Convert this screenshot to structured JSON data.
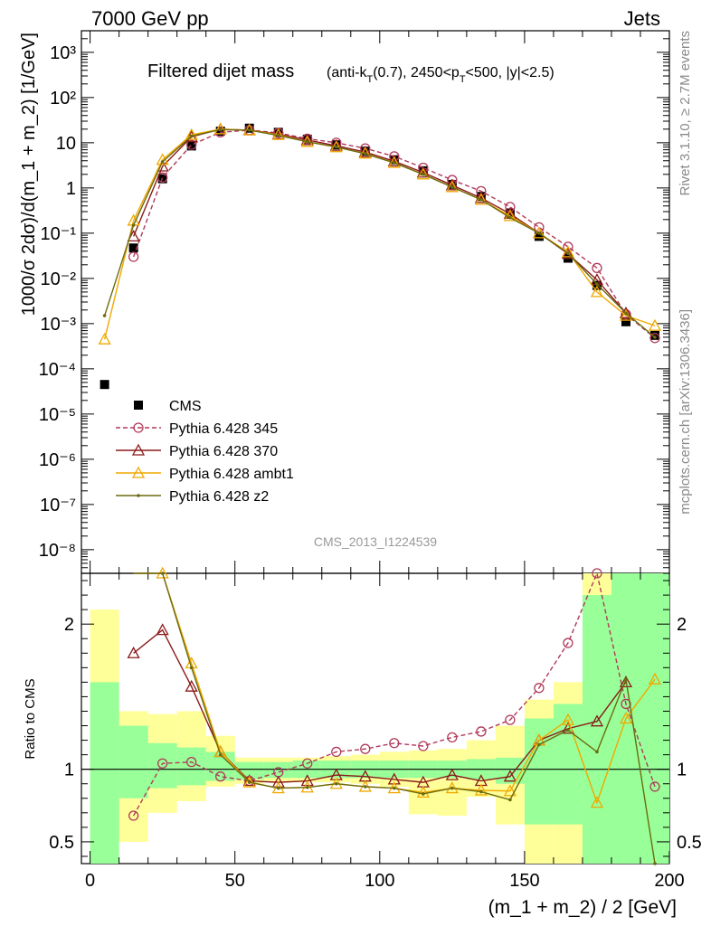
{
  "header": {
    "left": "7000 GeV pp",
    "right": "Jets"
  },
  "plot_title": {
    "main": "Filtered dijet mass",
    "sub": "(anti-k",
    "sub_T1": "T",
    "sub_mid": "(0.7), 2450<p",
    "sub_T2": "T",
    "sub_end": "<500, |y|<2.5)"
  },
  "side_labels": {
    "rivet": "Rivet 3.1.10, ≥ 2.7M events",
    "mcplots": "mcplots.cern.ch [arXiv:1306.3436]"
  },
  "watermark": "CMS_2013_I1224539",
  "legend": [
    {
      "label": "CMS",
      "color": "#000000",
      "style": "square"
    },
    {
      "label": "Pythia 6.428 345",
      "color": "#b03a5a",
      "style": "circle-dashed"
    },
    {
      "label": "Pythia 6.428 370",
      "color": "#8b1a1a",
      "style": "triangle"
    },
    {
      "label": "Pythia 6.428 ambt1",
      "color": "#f0a800",
      "style": "triangle"
    },
    {
      "label": "Pythia 6.428 z2",
      "color": "#6b6b10",
      "style": "dot"
    }
  ],
  "chart_data": [
    {
      "type": "line",
      "panel": "main",
      "ylabel": "1000/σ 2dσ)/d(m_1 + m_2) [1/GeV]",
      "yscale": "log",
      "ylim": [
        3e-09,
        3000
      ],
      "xlim": [
        -3,
        200
      ],
      "y_tick_labels": [
        "10⁻⁸",
        "10⁻⁷",
        "10⁻⁶",
        "10⁻⁵",
        "10⁻⁴",
        "10⁻³",
        "10⁻²",
        "10⁻¹",
        "1",
        "10",
        "10²",
        "10³"
      ],
      "x": [
        5,
        15,
        25,
        35,
        45,
        55,
        65,
        75,
        85,
        95,
        105,
        115,
        125,
        135,
        145,
        155,
        165,
        175,
        185,
        195
      ],
      "series": [
        {
          "name": "CMS",
          "values": [
            4.5e-05,
            0.047,
            1.6,
            8.5,
            18,
            21,
            17,
            12,
            9,
            6.5,
            4.2,
            2.4,
            1.2,
            0.65,
            0.28,
            0.085,
            0.028,
            0.007,
            0.0011,
            0.00055
          ]
        },
        {
          "name": "Pythia 6.428 345",
          "values": [
            null,
            0.03,
            1.7,
            9.0,
            17,
            19,
            16.5,
            12.3,
            10,
            7.5,
            5.0,
            2.8,
            1.5,
            0.85,
            0.38,
            0.135,
            0.05,
            0.017,
            0.0016,
            0.00048
          ]
        },
        {
          "name": "Pythia 6.428 370",
          "values": [
            null,
            0.085,
            3.0,
            13.5,
            20,
            19,
            15.5,
            11.5,
            8.6,
            6.2,
            3.9,
            2.2,
            1.15,
            0.6,
            0.27,
            0.1,
            0.035,
            0.0093,
            0.0017,
            null
          ]
        },
        {
          "name": "Pythia 6.428 ambt1",
          "values": [
            0.00045,
            0.19,
            4.2,
            15,
            20,
            19,
            15,
            10.5,
            8.0,
            5.8,
            3.6,
            2.0,
            1.05,
            0.55,
            0.24,
            0.1,
            0.038,
            0.005,
            0.0015,
            0.0009
          ]
        },
        {
          "name": "Pythia 6.428 z2",
          "values": [
            0.0015,
            0.15,
            3.8,
            14,
            19.5,
            19,
            14.5,
            10.5,
            8.1,
            5.7,
            3.6,
            2.0,
            1.05,
            0.55,
            0.22,
            0.1,
            0.036,
            0.0075,
            0.0017,
            0.0005
          ]
        }
      ]
    },
    {
      "type": "line",
      "panel": "ratio",
      "ylabel": "Ratio to CMS",
      "ylim": [
        0.35,
        2.35
      ],
      "y_tick_labels": [
        "0.5",
        "1",
        "2"
      ],
      "xlabel": "(m_1 + m_2) / 2 [GeV]",
      "x_tick_labels": [
        "0",
        "50",
        "100",
        "150",
        "200"
      ],
      "x": [
        5,
        15,
        25,
        35,
        45,
        55,
        65,
        75,
        85,
        95,
        105,
        115,
        125,
        135,
        145,
        155,
        165,
        175,
        185,
        195
      ],
      "bin_edges": [
        0,
        10,
        20,
        30,
        40,
        50,
        60,
        70,
        80,
        90,
        100,
        110,
        120,
        130,
        140,
        150,
        160,
        170,
        180,
        190,
        200
      ],
      "uncertainty_bands": {
        "green": {
          "lo": [
            0.35,
            0.8,
            0.87,
            0.89,
            0.92,
            0.93,
            0.94,
            0.94,
            0.94,
            0.94,
            0.94,
            0.94,
            0.94,
            0.93,
            0.9,
            0.62,
            0.62,
            0.35,
            0.35,
            0.35
          ],
          "hi": [
            1.6,
            1.3,
            1.18,
            1.15,
            1.12,
            1.05,
            1.05,
            1.06,
            1.06,
            1.06,
            1.06,
            1.06,
            1.06,
            1.07,
            1.08,
            1.35,
            1.45,
            2.2,
            2.35,
            2.35
          ]
        },
        "yellow": {
          "lo": [
            0.35,
            0.5,
            0.7,
            0.78,
            0.88,
            0.9,
            0.91,
            0.91,
            0.91,
            0.9,
            0.88,
            0.69,
            0.68,
            0.81,
            0.62,
            0.35,
            0.35,
            0.35,
            0.35,
            0.35
          ],
          "hi": [
            2.1,
            1.4,
            1.38,
            1.4,
            1.23,
            1.08,
            1.08,
            1.08,
            1.09,
            1.1,
            1.12,
            1.13,
            1.14,
            1.2,
            1.3,
            1.48,
            1.6,
            2.35,
            2.3,
            2.35
          ]
        }
      },
      "series": [
        {
          "name": "Pythia 6.428 345",
          "values": [
            null,
            0.68,
            1.04,
            1.05,
            0.95,
            0.92,
            0.98,
            1.04,
            1.12,
            1.14,
            1.18,
            1.16,
            1.22,
            1.26,
            1.34,
            1.56,
            1.87,
            2.35,
            1.45,
            0.88
          ]
        },
        {
          "name": "Pythia 6.428 370",
          "values": [
            null,
            1.8,
            1.96,
            1.57,
            1.12,
            0.92,
            0.91,
            0.92,
            0.96,
            0.95,
            0.93,
            0.91,
            0.96,
            0.92,
            0.95,
            1.2,
            1.28,
            1.33,
            1.6,
            null
          ]
        },
        {
          "name": "Pythia 6.428 ambt1",
          "values": [
            null,
            3.0,
            2.35,
            1.73,
            1.12,
            0.91,
            0.87,
            0.875,
            0.9,
            0.88,
            0.87,
            0.84,
            0.87,
            0.855,
            0.85,
            1.2,
            1.34,
            0.77,
            1.35,
            1.62
          ]
        },
        {
          "name": "Pythia 6.428 z2",
          "values": [
            null,
            3.0,
            2.35,
            1.7,
            1.1,
            0.91,
            0.87,
            0.875,
            0.9,
            0.88,
            0.87,
            0.83,
            0.87,
            0.845,
            0.79,
            1.17,
            1.27,
            1.12,
            1.62,
            0.35
          ]
        }
      ]
    }
  ]
}
